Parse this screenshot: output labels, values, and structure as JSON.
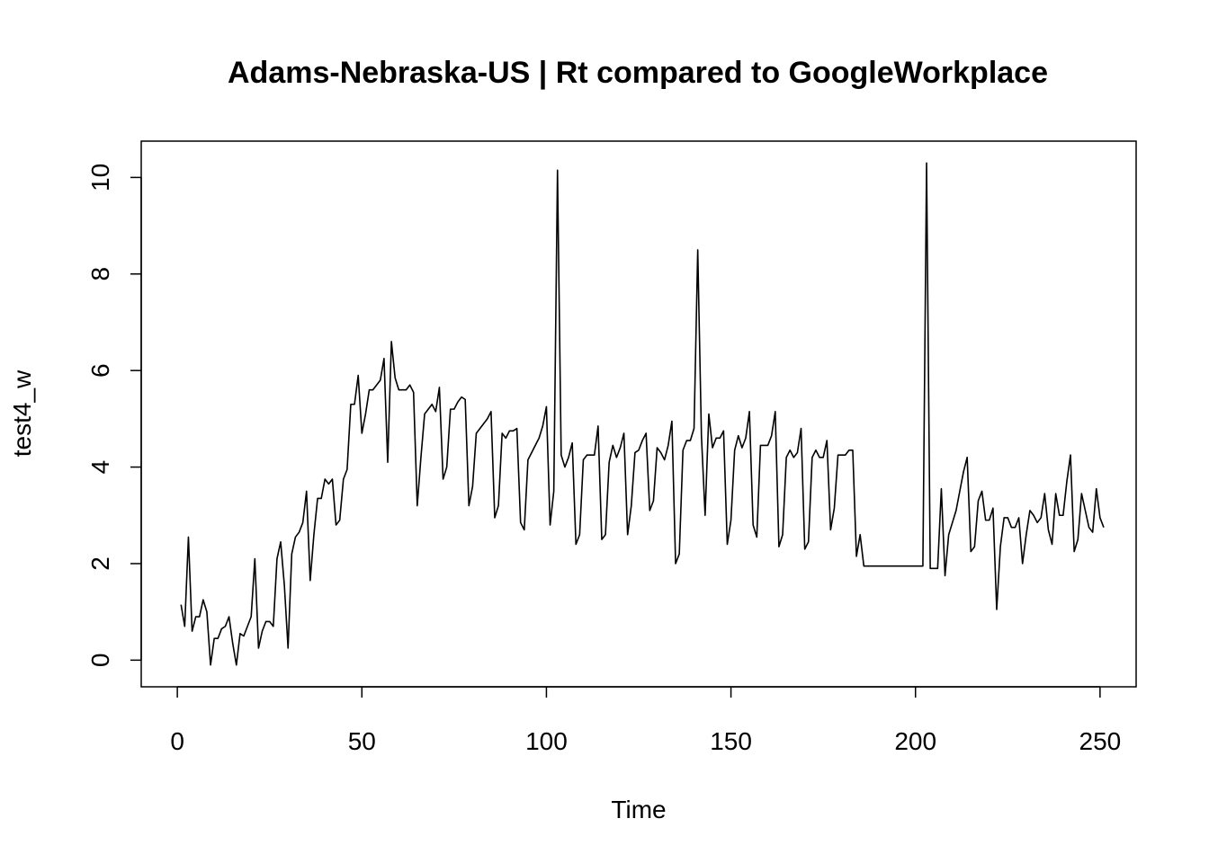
{
  "chart_data": {
    "type": "line",
    "title": "Adams-Nebraska-US | Rt compared to GoogleWorkplace",
    "xlabel": "Time",
    "ylabel": "test4_w",
    "xlim": [
      1,
      249
    ],
    "ylim": [
      -0.1,
      10.3
    ],
    "x_ticks": [
      0,
      50,
      100,
      150,
      200,
      250
    ],
    "y_ticks": [
      0,
      2,
      4,
      6,
      8,
      10
    ],
    "grid": false,
    "legend": "none",
    "series": [
      {
        "x_start": 1,
        "values": [
          1.15,
          0.7,
          2.55,
          0.6,
          0.9,
          0.9,
          1.25,
          1.0,
          -0.1,
          0.45,
          0.45,
          0.65,
          0.7,
          0.9,
          0.35,
          -0.1,
          0.55,
          0.5,
          0.7,
          0.9,
          2.1,
          0.25,
          0.6,
          0.8,
          0.8,
          0.7,
          2.1,
          2.45,
          1.55,
          0.25,
          2.2,
          2.55,
          2.65,
          2.85,
          3.5,
          1.65,
          2.6,
          3.35,
          3.35,
          3.75,
          3.65,
          3.75,
          2.8,
          2.9,
          3.75,
          3.95,
          5.3,
          5.3,
          5.9,
          4.7,
          5.1,
          5.6,
          5.6,
          5.7,
          5.8,
          6.25,
          4.1,
          6.6,
          5.85,
          5.6,
          5.6,
          5.6,
          5.7,
          5.55,
          3.2,
          4.2,
          5.1,
          5.2,
          5.3,
          5.15,
          5.65,
          3.75,
          4.0,
          5.2,
          5.2,
          5.35,
          5.45,
          5.4,
          3.2,
          3.6,
          4.7,
          4.8,
          4.9,
          5.0,
          5.15,
          2.95,
          3.2,
          4.7,
          4.6,
          4.75,
          4.75,
          4.8,
          2.85,
          2.7,
          4.15,
          4.3,
          4.45,
          4.6,
          4.85,
          5.25,
          2.8,
          3.5,
          10.15,
          4.25,
          4.0,
          4.2,
          4.5,
          2.4,
          2.6,
          4.15,
          4.25,
          4.25,
          4.25,
          4.85,
          2.5,
          2.6,
          4.1,
          4.45,
          4.2,
          4.4,
          4.7,
          2.6,
          3.2,
          4.3,
          4.35,
          4.55,
          4.7,
          3.1,
          3.3,
          4.4,
          4.3,
          4.15,
          4.45,
          4.95,
          2.0,
          2.2,
          4.35,
          4.55,
          4.55,
          4.8,
          8.5,
          4.65,
          3.0,
          5.1,
          4.4,
          4.6,
          4.6,
          4.75,
          2.4,
          2.9,
          4.35,
          4.65,
          4.4,
          4.6,
          5.15,
          2.8,
          2.55,
          4.45,
          4.45,
          4.45,
          4.65,
          5.15,
          2.35,
          2.6,
          4.2,
          4.35,
          4.2,
          4.3,
          4.8,
          2.3,
          2.45,
          4.2,
          4.35,
          4.2,
          4.2,
          4.55,
          2.7,
          3.15,
          4.25,
          4.25,
          4.25,
          4.35,
          4.35,
          2.15,
          2.6,
          1.95,
          1.95,
          1.95,
          1.95,
          1.95,
          1.95,
          1.95,
          1.95,
          1.95,
          1.95,
          1.95,
          1.95,
          1.95,
          1.95,
          1.95,
          1.95,
          1.95,
          10.3,
          1.9,
          1.9,
          1.9,
          3.55,
          1.75,
          2.6,
          2.85,
          3.1,
          3.5,
          3.9,
          4.2,
          2.25,
          2.35,
          3.3,
          3.5,
          2.9,
          2.9,
          3.15,
          1.05,
          2.35,
          2.95,
          2.95,
          2.75,
          2.75,
          2.95,
          2.0,
          2.6,
          3.1,
          3.0,
          2.85,
          2.95,
          3.45,
          2.7,
          2.4,
          3.45,
          3.0,
          3.0,
          3.7,
          4.25,
          2.25,
          2.5,
          3.45,
          3.1,
          2.75,
          2.65,
          3.55,
          2.95,
          2.75
        ]
      }
    ]
  }
}
